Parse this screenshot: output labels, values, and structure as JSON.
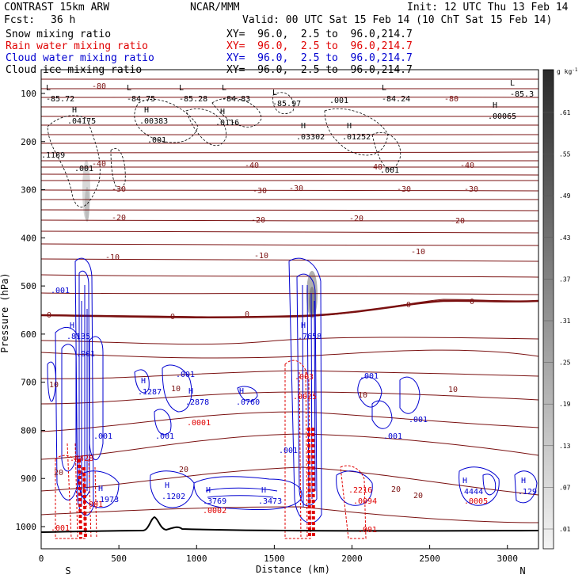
{
  "header": {
    "title": "CONTRAST 15km ARW",
    "center": "NCAR/MMM",
    "init": "Init: 12 UTC Thu 13 Feb 14",
    "fcst_label": "Fcst:",
    "fcst_value": "36 h",
    "valid": "Valid: 00 UTC Sat 15 Feb 14 (10 ChT Sat 15 Feb 14)"
  },
  "fields": [
    {
      "name": "Snow mixing ratio",
      "xy": "XY=  96.0,  2.5 to  96.0,214.7",
      "color": "#000000"
    },
    {
      "name": "Rain water mixing ratio",
      "xy": "XY=  96.0,  2.5 to  96.0,214.7",
      "color": "#e00000"
    },
    {
      "name": "Cloud water mixing ratio",
      "xy": "XY=  96.0,  2.5 to  96.0,214.7",
      "color": "#0000d0"
    },
    {
      "name": "Cloud ice mixing ratio",
      "xy": "XY=  96.0,  2.5 to  96.0,214.7",
      "color": "#000000"
    }
  ],
  "chart_data": {
    "type": "contour-cross-section",
    "xlabel": "Distance (km)",
    "ylabel": "Pressure (hPa)",
    "xlim": [
      0,
      3200
    ],
    "ylim": [
      1050,
      50
    ],
    "x_ticks": [
      0,
      500,
      1000,
      1500,
      2000,
      2500,
      3000
    ],
    "y_ticks": [
      100,
      200,
      300,
      400,
      500,
      600,
      700,
      800,
      900,
      1000
    ],
    "x_end_labels": {
      "left": "S",
      "right": "N"
    },
    "colorbar": {
      "unit": "g kg",
      "unit_exp": "-1",
      "levels": [
        0.01,
        0.07,
        0.13,
        0.19,
        0.25,
        0.31,
        0.37,
        0.43,
        0.49,
        0.55,
        0.61
      ],
      "labels": [
        ".01",
        ".07",
        ".13",
        ".19",
        ".25",
        ".31",
        ".37",
        ".43",
        ".49",
        ".55",
        ".61"
      ]
    },
    "temperature_isotherms": [
      {
        "label": "-80",
        "p": 95
      },
      {
        "label": "-40",
        "p": 245
      },
      {
        "label": "-30",
        "p": 300
      },
      {
        "label": "-20",
        "p": 345
      },
      {
        "label": "-10",
        "p": 420
      },
      {
        "label": "0",
        "p": 548
      },
      {
        "label": "10",
        "p": 745
      },
      {
        "label": "20",
        "p": 875
      }
    ],
    "low_labels": [
      "-85.72",
      "-84.75",
      "-85.28",
      "-84.83",
      "-85.97",
      "-84.24",
      "-85.3"
    ],
    "snow_highs": [
      ".04175",
      ".00383",
      ".0116",
      ".03302",
      ".01252",
      ".00065",
      ".1189"
    ],
    "cloud_water_highs": [
      ".8135",
      ".7658",
      ".1287",
      ".2878",
      ".0760",
      ".1973",
      ".1202",
      ".3769",
      ".3473",
      ".4444",
      ".129"
    ],
    "rain_highs": [
      ".4428",
      ".2216"
    ],
    "minor_labels": [
      ".001",
      ".0001",
      ".0002",
      ".0094",
      ".0005",
      ".0025",
      ".003"
    ]
  }
}
